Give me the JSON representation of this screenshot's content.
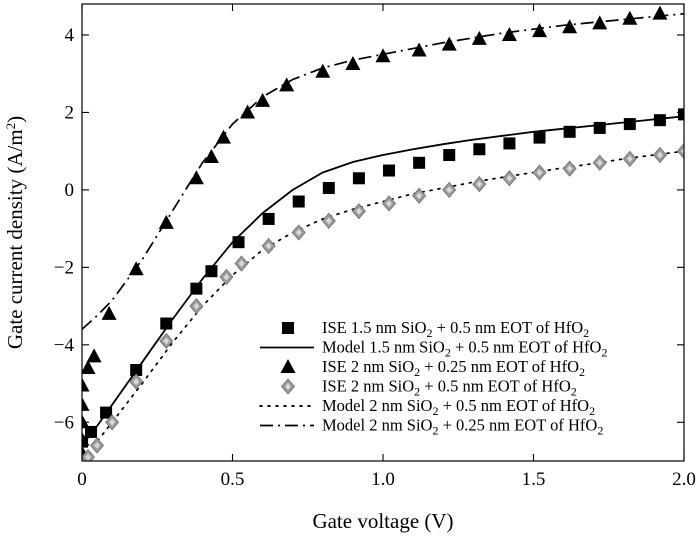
{
  "chart_data": {
    "type": "line",
    "xlabel": "Gate voltage (V)",
    "ylabel": "Gate current density (A/m²)",
    "xlim": [
      0,
      2.0
    ],
    "ylim": [
      -7,
      4.8
    ],
    "x_ticks": [
      0,
      0.5,
      1.0,
      1.5,
      2.0
    ],
    "x_tick_labels": [
      "0",
      "0.5",
      "1.0",
      "1.5",
      "2.0"
    ],
    "y_ticks": [
      -6,
      -4,
      -2,
      0,
      2,
      4
    ],
    "y_tick_labels": [
      "−6",
      "−4",
      "−2",
      "0",
      "2",
      "4"
    ],
    "grid": false,
    "legend_position": "bottom-right",
    "series": [
      {
        "name": "ISE 1.5 nm SiO2 + 0.5 nm EOT of HfO2",
        "style": "marker",
        "marker": "square",
        "color": "#000000",
        "x": [
          0.0,
          0.03,
          0.08,
          0.18,
          0.28,
          0.38,
          0.43,
          0.52,
          0.62,
          0.72,
          0.82,
          0.92,
          1.02,
          1.12,
          1.22,
          1.32,
          1.42,
          1.52,
          1.62,
          1.72,
          1.82,
          1.92,
          2.0
        ],
        "y": [
          -6.5,
          -6.25,
          -5.75,
          -4.65,
          -3.45,
          -2.55,
          -2.1,
          -1.35,
          -0.75,
          -0.3,
          0.05,
          0.3,
          0.5,
          0.7,
          0.9,
          1.05,
          1.2,
          1.35,
          1.5,
          1.6,
          1.7,
          1.8,
          1.95
        ]
      },
      {
        "name": "Model 1.5 nm SiO2 + 0.5 nm EOT of HfO2",
        "style": "solid",
        "color": "#000000",
        "x": [
          0.0,
          0.05,
          0.1,
          0.2,
          0.3,
          0.4,
          0.5,
          0.6,
          0.7,
          0.8,
          0.9,
          1.0,
          1.1,
          1.2,
          1.3,
          1.4,
          1.5,
          1.6,
          1.7,
          1.8,
          1.9,
          2.0
        ],
        "y": [
          -6.6,
          -6.1,
          -5.55,
          -4.45,
          -3.35,
          -2.3,
          -1.35,
          -0.6,
          0.0,
          0.45,
          0.72,
          0.9,
          1.05,
          1.18,
          1.3,
          1.4,
          1.5,
          1.58,
          1.66,
          1.74,
          1.82,
          1.9
        ]
      },
      {
        "name": "ISE 2 nm SiO2 + 0.25 nm EOT of HfO2",
        "style": "marker",
        "marker": "triangle",
        "color": "#000000",
        "x": [
          0.0,
          0.0,
          0.0,
          0.0,
          0.0,
          0.02,
          0.04,
          0.09,
          0.18,
          0.28,
          0.38,
          0.43,
          0.47,
          0.55,
          0.6,
          0.68,
          0.8,
          0.9,
          1.0,
          1.12,
          1.22,
          1.32,
          1.42,
          1.52,
          1.62,
          1.72,
          1.82,
          1.92
        ],
        "y": [
          -6.8,
          -6.45,
          -6.0,
          -5.55,
          -5.05,
          -4.6,
          -4.3,
          -3.2,
          -2.05,
          -0.85,
          0.3,
          0.85,
          1.35,
          2.0,
          2.3,
          2.7,
          3.05,
          3.25,
          3.45,
          3.6,
          3.75,
          3.9,
          4.0,
          4.1,
          4.2,
          4.3,
          4.42,
          4.55
        ]
      },
      {
        "name": "ISE 2 nm SiO2 + 0.5 nm EOT of HfO2",
        "style": "marker",
        "marker": "diamond",
        "color": "#9a9a9a",
        "x": [
          0.02,
          0.05,
          0.1,
          0.18,
          0.28,
          0.38,
          0.48,
          0.53,
          0.62,
          0.72,
          0.82,
          0.92,
          1.02,
          1.12,
          1.22,
          1.32,
          1.42,
          1.52,
          1.62,
          1.72,
          1.82,
          1.92,
          2.0
        ],
        "y": [
          -6.9,
          -6.6,
          -6.0,
          -4.95,
          -3.9,
          -3.0,
          -2.25,
          -1.9,
          -1.45,
          -1.1,
          -0.8,
          -0.55,
          -0.35,
          -0.15,
          0.0,
          0.15,
          0.3,
          0.45,
          0.55,
          0.7,
          0.8,
          0.9,
          1.0
        ]
      },
      {
        "name": "Model 2 nm SiO2 + 0.5 nm EOT of HfO2",
        "style": "dotted",
        "color": "#000000",
        "x": [
          0.0,
          0.05,
          0.1,
          0.2,
          0.3,
          0.4,
          0.5,
          0.6,
          0.7,
          0.8,
          0.9,
          1.0,
          1.1,
          1.2,
          1.3,
          1.4,
          1.5,
          1.6,
          1.7,
          1.8,
          1.9,
          2.0
        ],
        "y": [
          -6.95,
          -6.5,
          -6.0,
          -5.0,
          -3.95,
          -3.0,
          -2.2,
          -1.55,
          -1.1,
          -0.75,
          -0.5,
          -0.3,
          -0.1,
          0.05,
          0.2,
          0.33,
          0.45,
          0.57,
          0.68,
          0.8,
          0.9,
          1.0
        ]
      },
      {
        "name": "Model 2 nm SiO2 + 0.25 nm EOT of HfO2",
        "style": "dashdot",
        "color": "#000000",
        "x": [
          0.0,
          0.05,
          0.1,
          0.2,
          0.3,
          0.4,
          0.5,
          0.6,
          0.7,
          0.8,
          0.9,
          1.0,
          1.2,
          1.4,
          1.6,
          1.8,
          2.0
        ],
        "y": [
          -3.6,
          -3.25,
          -2.85,
          -1.8,
          -0.55,
          0.7,
          1.7,
          2.4,
          2.85,
          3.15,
          3.35,
          3.5,
          3.8,
          4.05,
          4.25,
          4.4,
          4.55
        ]
      }
    ]
  },
  "legend": {
    "entries": [
      {
        "prefix": "ISE 1.5 nm SiO",
        "sub1": "2",
        "mid": " + 0.5 nm EOT of HfO",
        "sub2": "2"
      },
      {
        "prefix": "Model 1.5 nm SiO",
        "sub1": "2",
        "mid": " + 0.5 nm EOT of HfO",
        "sub2": "2"
      },
      {
        "prefix": "ISE 2 nm SiO",
        "sub1": "2",
        "mid": " + 0.25 nm EOT of HfO",
        "sub2": "2"
      },
      {
        "prefix": "ISE 2 nm SiO",
        "sub1": "2",
        "mid": " + 0.5 nm EOT of HfO",
        "sub2": "2"
      },
      {
        "prefix": "Model 2 nm SiO",
        "sub1": "2",
        "mid": " + 0.5 nm EOT of HfO",
        "sub2": "2"
      },
      {
        "prefix": "Model 2 nm SiO",
        "sub1": "2",
        "mid": " + 0.25 nm EOT of HfO",
        "sub2": "2"
      }
    ]
  },
  "ylabel_parts": {
    "main": "Gate current density (A/m",
    "sup": "2",
    "close": ")"
  }
}
